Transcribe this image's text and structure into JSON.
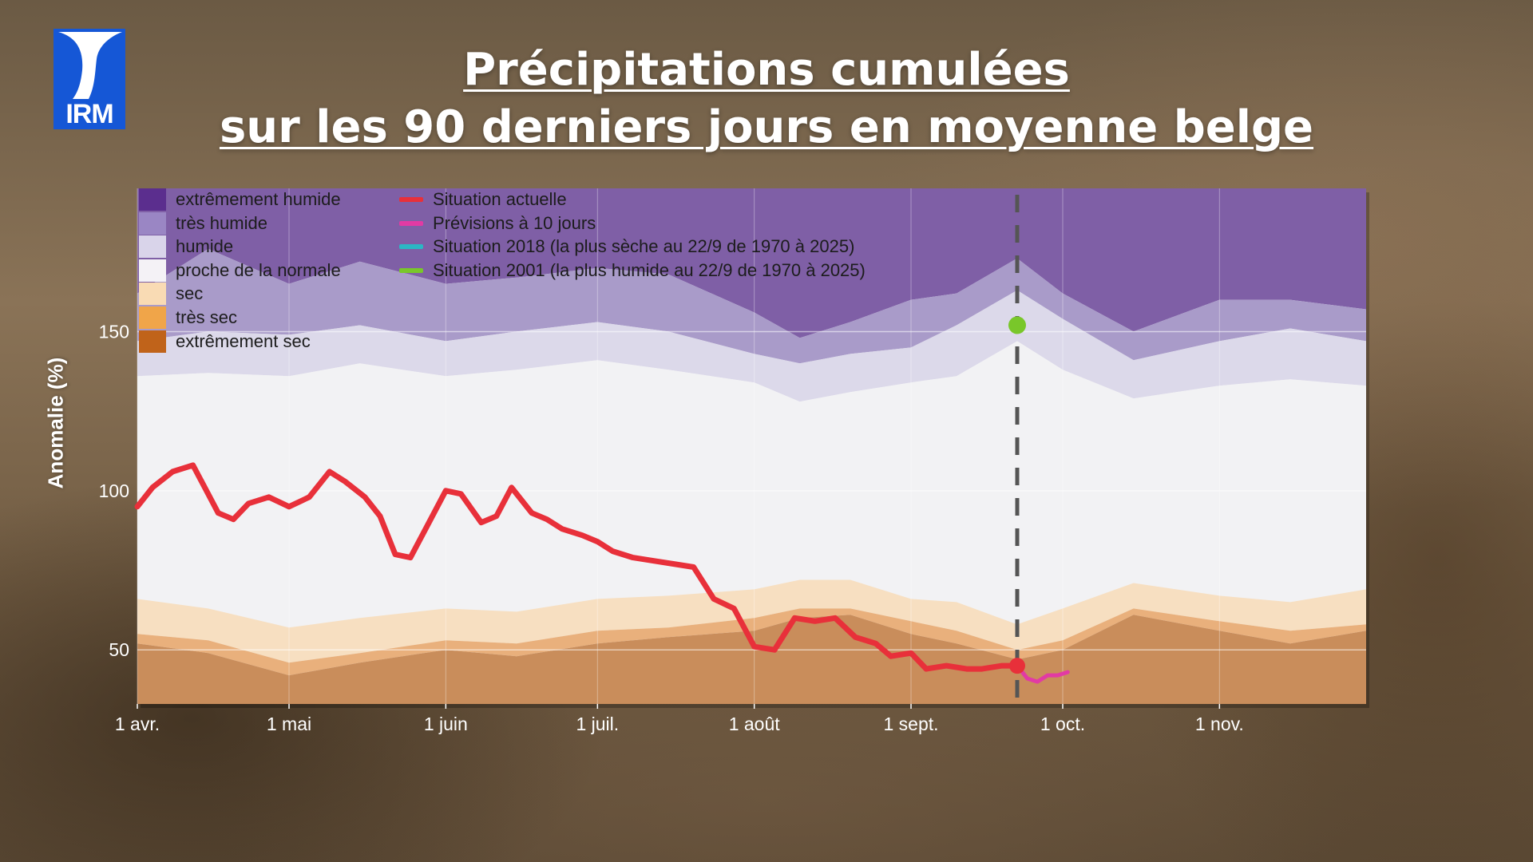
{
  "logo": {
    "text": "IRM"
  },
  "title": {
    "line1": "Précipitations cumulées",
    "line2": "sur les 90 derniers jours en moyenne belge"
  },
  "colors": {
    "extremement_humide": "#7f5fa6",
    "tres_humide": "#a99bc9",
    "humide": "#dcd9ea",
    "proche_normale": "#f2f2f4",
    "sec": "#f7dfc1",
    "tres_sec": "#e9b07c",
    "extremement_sec": "#c98d5b",
    "situation_actuelle": "#e8303a",
    "previsions": "#e23aa4",
    "situation_2018": "#2bb7c4",
    "situation_2001": "#79c72a",
    "vertical_line": "#555555"
  },
  "legend": {
    "bands": [
      {
        "label": "extrêmement humide",
        "color": "#5b2e8e"
      },
      {
        "label": "très humide",
        "color": "#9a86c4"
      },
      {
        "label": "humide",
        "color": "#d9d4ea"
      },
      {
        "label": "proche de la normale",
        "color": "#f4f2f6"
      },
      {
        "label": "sec",
        "color": "#f9dbb4"
      },
      {
        "label": "très sec",
        "color": "#f0a549"
      },
      {
        "label": "extrêmement sec",
        "color": "#c0631a"
      }
    ],
    "lines": [
      {
        "label": "Situation actuelle",
        "color": "#e8303a"
      },
      {
        "label": "Prévisions à 10 jours",
        "color": "#e23aa4"
      },
      {
        "label": "Situation 2018 (la plus sèche au 22/9 de 1970 à 2025)",
        "color": "#2bb7c4"
      },
      {
        "label": "Situation 2001 (la plus humide au 22/9 de 1970 à 2025)",
        "color": "#79c72a"
      }
    ]
  },
  "chart_data": {
    "type": "area",
    "ylabel": "Anomalie (%)",
    "xlabel": "",
    "ylim": [
      33,
      195
    ],
    "yticks": [
      50,
      100,
      150
    ],
    "x_unit": "day of year (1 = 1 avr.)",
    "xlim": [
      "1 avr.",
      "30 nov."
    ],
    "xticks": [
      {
        "label": "1 avr.",
        "date": "04-01"
      },
      {
        "label": "1 mai",
        "date": "05-01"
      },
      {
        "label": "1 juin",
        "date": "06-01"
      },
      {
        "label": "1 juil.",
        "date": "07-01"
      },
      {
        "label": "1 août",
        "date": "08-01"
      },
      {
        "label": "1 sept.",
        "date": "09-01"
      },
      {
        "label": "1 oct.",
        "date": "10-01"
      },
      {
        "label": "1 nov.",
        "date": "11-01"
      }
    ],
    "vertical_line_date": "09-22",
    "band_thresholds": {
      "dates": [
        "04-01",
        "04-15",
        "05-01",
        "05-15",
        "06-01",
        "06-15",
        "07-01",
        "07-15",
        "08-01",
        "08-10",
        "08-20",
        "09-01",
        "09-10",
        "09-22",
        "10-01",
        "10-15",
        "11-01",
        "11-15",
        "11-30"
      ],
      "extremely_dry_upper": [
        52,
        49,
        42,
        46,
        50,
        48,
        52,
        54,
        56,
        60,
        61,
        55,
        52,
        47,
        50,
        61,
        56,
        52,
        56
      ],
      "very_dry_upper": [
        55,
        53,
        46,
        49,
        53,
        52,
        56,
        57,
        60,
        63,
        63,
        59,
        56,
        50,
        53,
        63,
        59,
        56,
        58
      ],
      "dry_upper": [
        66,
        63,
        57,
        60,
        63,
        62,
        66,
        67,
        69,
        72,
        72,
        66,
        65,
        58,
        63,
        71,
        67,
        65,
        69
      ],
      "wet_lower": [
        136,
        137,
        136,
        140,
        136,
        138,
        141,
        138,
        134,
        128,
        131,
        134,
        136,
        147,
        138,
        129,
        133,
        135,
        133
      ],
      "very_wet_lower": [
        147,
        150,
        149,
        152,
        147,
        150,
        153,
        150,
        143,
        140,
        143,
        145,
        152,
        163,
        154,
        141,
        147,
        151,
        147
      ],
      "extremely_wet_lower": [
        162,
        176,
        165,
        172,
        165,
        167,
        170,
        168,
        156,
        148,
        153,
        160,
        162,
        173,
        162,
        150,
        160,
        160,
        157
      ]
    },
    "series": [
      {
        "name": "Situation actuelle",
        "dates": [
          "04-01",
          "04-04",
          "04-08",
          "04-12",
          "04-17",
          "04-20",
          "04-23",
          "04-27",
          "05-01",
          "05-05",
          "05-09",
          "05-12",
          "05-16",
          "05-19",
          "05-22",
          "05-25",
          "05-28",
          "06-01",
          "06-04",
          "06-08",
          "06-11",
          "06-14",
          "06-18",
          "06-21",
          "06-24",
          "06-28",
          "07-01",
          "07-04",
          "07-08",
          "07-12",
          "07-16",
          "07-20",
          "07-24",
          "07-28",
          "08-01",
          "08-05",
          "08-09",
          "08-13",
          "08-17",
          "08-21",
          "08-25",
          "08-28",
          "09-01",
          "09-04",
          "09-08",
          "09-12",
          "09-15",
          "09-19",
          "09-22"
        ],
        "values": [
          95,
          101,
          106,
          108,
          93,
          91,
          96,
          98,
          95,
          98,
          106,
          103,
          98,
          92,
          80,
          79,
          88,
          100,
          99,
          90,
          92,
          101,
          93,
          91,
          88,
          86,
          84,
          81,
          79,
          78,
          77,
          76,
          66,
          63,
          51,
          50,
          60,
          59,
          60,
          54,
          52,
          48,
          49,
          44,
          45,
          44,
          44,
          45,
          45
        ]
      },
      {
        "name": "Prévisions à 10 jours",
        "dates": [
          "09-22",
          "09-24",
          "09-26",
          "09-28",
          "09-30",
          "10-02"
        ],
        "values": [
          45,
          41,
          40,
          42,
          42,
          43
        ]
      },
      {
        "name": "Situation 2018 (la plus sèche au 22/9 de 1970 à 2025)",
        "dates": [
          "09-22"
        ],
        "values": [
          44
        ]
      },
      {
        "name": "Situation 2001 (la plus humide au 22/9 de 1970 à 2025)",
        "dates": [
          "09-22"
        ],
        "values": [
          152
        ]
      }
    ],
    "markers": [
      {
        "series": "Situation actuelle",
        "date": "09-22",
        "value": 45
      },
      {
        "series": "Situation 2001 (la plus humide au 22/9 de 1970 à 2025)",
        "date": "09-22",
        "value": 152
      }
    ]
  }
}
